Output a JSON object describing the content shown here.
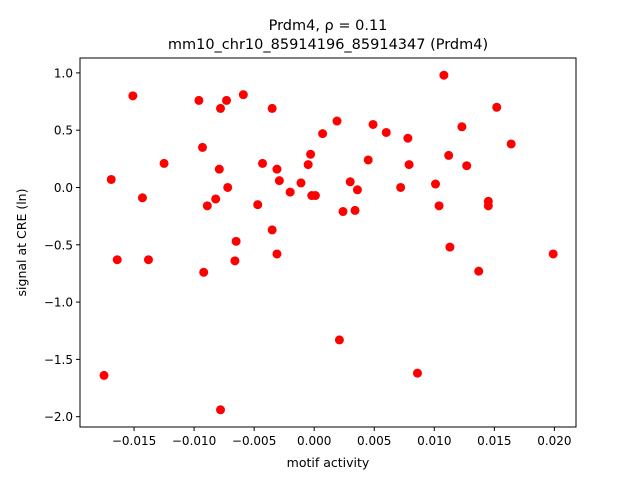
{
  "chart_data": {
    "type": "scatter",
    "title_line1": "Prdm4, ρ = 0.11",
    "title_line2": "mm10_chr10_85914196_85914347 (Prdm4)",
    "xlabel": "motif activity",
    "ylabel": "signal at CRE (ln)",
    "xlim": [
      -0.0195,
      0.0218
    ],
    "ylim": [
      -2.09,
      1.13
    ],
    "xticks": [
      -0.015,
      -0.01,
      -0.005,
      0.0,
      0.005,
      0.01,
      0.015,
      0.02
    ],
    "xtick_labels": [
      "−0.015",
      "−0.010",
      "−0.005",
      "0.000",
      "0.005",
      "0.010",
      "0.015",
      "0.020"
    ],
    "yticks": [
      -2.0,
      -1.5,
      -1.0,
      -0.5,
      0.0,
      0.5,
      1.0
    ],
    "ytick_labels": [
      "−2.0",
      "−1.5",
      "−1.0",
      "−0.5",
      "0.0",
      "0.5",
      "1.0"
    ],
    "grid": false,
    "marker_color": "#ff0000",
    "points": [
      {
        "x": -0.0175,
        "y": -1.64
      },
      {
        "x": -0.0169,
        "y": 0.07
      },
      {
        "x": -0.0164,
        "y": -0.63
      },
      {
        "x": -0.0151,
        "y": 0.8
      },
      {
        "x": -0.0143,
        "y": -0.09
      },
      {
        "x": -0.0138,
        "y": -0.63
      },
      {
        "x": -0.0125,
        "y": 0.21
      },
      {
        "x": -0.0096,
        "y": 0.76
      },
      {
        "x": -0.0093,
        "y": 0.35
      },
      {
        "x": -0.0092,
        "y": -0.74
      },
      {
        "x": -0.0089,
        "y": -0.16
      },
      {
        "x": -0.0082,
        "y": -0.1
      },
      {
        "x": -0.0079,
        "y": 0.16
      },
      {
        "x": -0.0078,
        "y": 0.69
      },
      {
        "x": -0.0078,
        "y": -1.94
      },
      {
        "x": -0.0073,
        "y": 0.76
      },
      {
        "x": -0.0072,
        "y": 0.0
      },
      {
        "x": -0.0066,
        "y": -0.64
      },
      {
        "x": -0.0065,
        "y": -0.47
      },
      {
        "x": -0.0059,
        "y": 0.81
      },
      {
        "x": -0.0047,
        "y": -0.15
      },
      {
        "x": -0.0043,
        "y": 0.21
      },
      {
        "x": -0.0035,
        "y": 0.69
      },
      {
        "x": -0.0035,
        "y": -0.37
      },
      {
        "x": -0.0031,
        "y": 0.16
      },
      {
        "x": -0.0031,
        "y": -0.58
      },
      {
        "x": -0.0029,
        "y": 0.06
      },
      {
        "x": -0.002,
        "y": -0.04
      },
      {
        "x": -0.0011,
        "y": 0.04
      },
      {
        "x": -0.0005,
        "y": 0.2
      },
      {
        "x": -0.0003,
        "y": 0.29
      },
      {
        "x": -0.0002,
        "y": -0.07
      },
      {
        "x": 0.0001,
        "y": -0.07
      },
      {
        "x": 0.0007,
        "y": 0.47
      },
      {
        "x": 0.0019,
        "y": 0.58
      },
      {
        "x": 0.0021,
        "y": -1.33
      },
      {
        "x": 0.0024,
        "y": -0.21
      },
      {
        "x": 0.003,
        "y": 0.05
      },
      {
        "x": 0.0034,
        "y": -0.2
      },
      {
        "x": 0.0036,
        "y": -0.02
      },
      {
        "x": 0.0045,
        "y": 0.24
      },
      {
        "x": 0.0049,
        "y": 0.55
      },
      {
        "x": 0.006,
        "y": 0.48
      },
      {
        "x": 0.0072,
        "y": 0.0
      },
      {
        "x": 0.0078,
        "y": 0.43
      },
      {
        "x": 0.0079,
        "y": 0.2
      },
      {
        "x": 0.0086,
        "y": -1.62
      },
      {
        "x": 0.0101,
        "y": 0.03
      },
      {
        "x": 0.0104,
        "y": -0.16
      },
      {
        "x": 0.0108,
        "y": 0.98
      },
      {
        "x": 0.0112,
        "y": 0.28
      },
      {
        "x": 0.0113,
        "y": -0.52
      },
      {
        "x": 0.0123,
        "y": 0.53
      },
      {
        "x": 0.0127,
        "y": 0.19
      },
      {
        "x": 0.0137,
        "y": -0.73
      },
      {
        "x": 0.0145,
        "y": -0.12
      },
      {
        "x": 0.0145,
        "y": -0.16
      },
      {
        "x": 0.0152,
        "y": 0.7
      },
      {
        "x": 0.0164,
        "y": 0.38
      },
      {
        "x": 0.0199,
        "y": -0.58
      }
    ]
  }
}
